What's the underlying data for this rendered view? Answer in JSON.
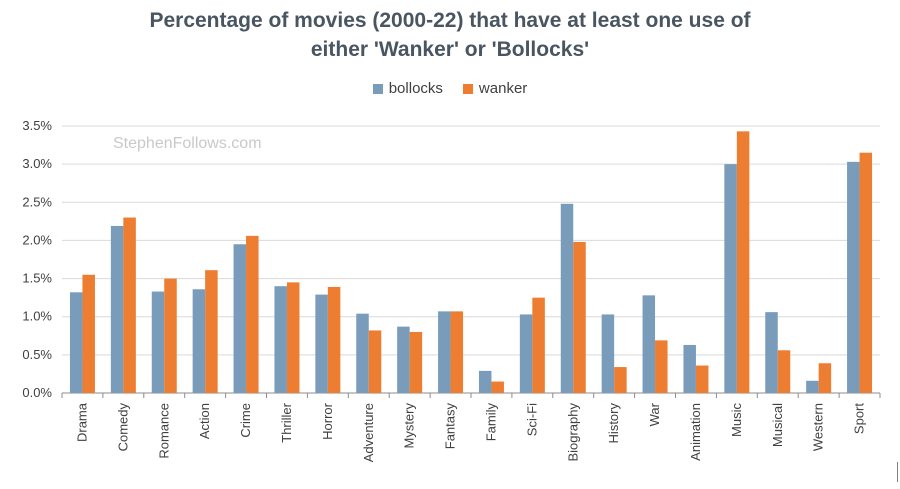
{
  "watermark": "StephenFollows.com",
  "colors": {
    "bollocks": "#7a9cbb",
    "wanker": "#ed7d31",
    "grid": "#d9d9d9",
    "axis": "#8c8c8c",
    "title": "#4a5562"
  },
  "chart_data": {
    "type": "bar",
    "title_lines": [
      "Percentage of movies (2000-22) that have at least one use of",
      "either 'Wanker' or 'Bollocks'"
    ],
    "xlabel": "",
    "ylabel": "",
    "ylim": [
      0,
      3.5
    ],
    "yticks": [
      0,
      0.5,
      1.0,
      1.5,
      2.0,
      2.5,
      3.0,
      3.5
    ],
    "ytick_labels": [
      "0.0%",
      "0.5%",
      "1.0%",
      "1.5%",
      "2.0%",
      "2.5%",
      "3.0%",
      "3.5%"
    ],
    "grid": true,
    "legend_position": "top-center",
    "categories": [
      "Drama",
      "Comedy",
      "Romance",
      "Action",
      "Crime",
      "Thriller",
      "Horror",
      "Adventure",
      "Mystery",
      "Fantasy",
      "Family",
      "Sci-Fi",
      "Biography",
      "History",
      "War",
      "Animation",
      "Music",
      "Musical",
      "Western",
      "Sport"
    ],
    "series": [
      {
        "name": "bollocks",
        "values": [
          1.32,
          2.19,
          1.33,
          1.36,
          1.95,
          1.4,
          1.29,
          1.04,
          0.87,
          1.07,
          0.29,
          1.03,
          2.48,
          1.03,
          1.28,
          0.63,
          3.0,
          1.06,
          0.16,
          3.03
        ]
      },
      {
        "name": "wanker",
        "values": [
          1.55,
          2.3,
          1.5,
          1.61,
          2.06,
          1.45,
          1.39,
          0.82,
          0.8,
          1.07,
          0.15,
          1.25,
          1.98,
          0.34,
          0.69,
          0.36,
          3.43,
          0.56,
          0.39,
          3.15
        ]
      }
    ]
  }
}
